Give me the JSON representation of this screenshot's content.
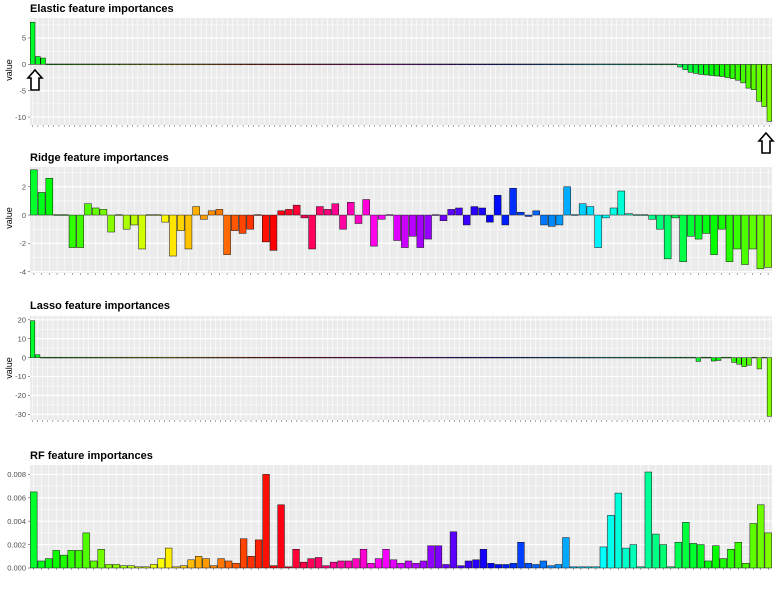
{
  "chart_data": [
    {
      "type": "bar",
      "title": "Elastic feature importances",
      "ylabel": "value",
      "ylim": [
        -11.5,
        8.8
      ],
      "yticks": [
        5,
        0,
        -5,
        -10
      ],
      "grid": true,
      "annotations": [
        "up-arrow-under-first-bar",
        "up-arrow-under-last-bar"
      ],
      "values": [
        8.0,
        1.5,
        1.2,
        0,
        0,
        0,
        0,
        0,
        0,
        0,
        0,
        0,
        0,
        0,
        0,
        0,
        0,
        0,
        0,
        0,
        0,
        0,
        0,
        0,
        0,
        0,
        0,
        0,
        0,
        0,
        0,
        0,
        0,
        0,
        0,
        0,
        0,
        0,
        0,
        0,
        0,
        0,
        0,
        0,
        0,
        0,
        0,
        0,
        0,
        0,
        0,
        0,
        0,
        0,
        0,
        0,
        0,
        0,
        0,
        0,
        0,
        0,
        0,
        0,
        0,
        0,
        0,
        0,
        0,
        0,
        0,
        0,
        0,
        0,
        0,
        0,
        0,
        0,
        0,
        0,
        0,
        0,
        0,
        0,
        0,
        0,
        0,
        0,
        0,
        0,
        0,
        0,
        0,
        0,
        0,
        0,
        0,
        0,
        0,
        0,
        0,
        0,
        0,
        0,
        0,
        0,
        0,
        0,
        0,
        0,
        0,
        0,
        0,
        0,
        0,
        0,
        0,
        0,
        0,
        0,
        0,
        0,
        0,
        -0.5,
        -1.0,
        -1.5,
        -1.7,
        -1.9,
        -2.0,
        -2.1,
        -2.2,
        -2.3,
        -2.5,
        -2.7,
        -3.0,
        -3.5,
        -4.5,
        -4.8,
        -7.0,
        -8.0,
        -10.8
      ]
    },
    {
      "type": "bar",
      "title": "Ridge feature importances",
      "ylabel": "value",
      "ylim": [
        -4.1,
        3.4
      ],
      "yticks": [
        2,
        0,
        -2,
        -4
      ],
      "grid": true,
      "values": [
        3.2,
        1.6,
        2.6,
        0,
        0,
        -2.3,
        -2.3,
        0.8,
        0.5,
        0.4,
        -1.2,
        0,
        -1.0,
        -0.7,
        -2.4,
        0,
        0,
        -0.5,
        -2.9,
        -1.1,
        -2.4,
        0.6,
        -0.3,
        0.3,
        0.4,
        -2.8,
        -1.1,
        -1.3,
        -1.0,
        0,
        -1.9,
        -2.5,
        0.3,
        0.4,
        0.7,
        -0.2,
        -2.4,
        0.6,
        0.4,
        0.8,
        -1.0,
        0.9,
        -0.6,
        1.1,
        -2.2,
        -0.3,
        0,
        -1.8,
        -2.3,
        -1.5,
        -2.3,
        -1.7,
        0,
        -0.4,
        0.4,
        0.5,
        -0.7,
        0.6,
        0.5,
        -0.5,
        1.4,
        -0.7,
        1.9,
        0.2,
        -0.1,
        0.3,
        -0.7,
        -0.8,
        -0.7,
        2.0,
        0,
        0.8,
        0.6,
        -2.3,
        -0.2,
        0.5,
        1.7,
        0.1,
        0,
        0,
        -0.3,
        -1.0,
        -3.1,
        -0.2,
        -3.3,
        -1.5,
        -1.7,
        -1.3,
        -2.8,
        -1.0,
        -3.3,
        -2.4,
        -3.5,
        -2.4,
        -3.8,
        -3.7
      ]
    },
    {
      "type": "bar",
      "title": "Lasso feature importances",
      "ylabel": "value",
      "ylim": [
        -33,
        22
      ],
      "yticks": [
        20,
        10,
        0,
        -10,
        -20,
        -30
      ],
      "grid": true,
      "values": [
        19.5,
        1.5,
        0,
        0,
        0,
        0,
        0,
        0,
        0,
        0,
        0,
        0,
        0,
        0,
        0,
        0,
        0,
        0,
        0,
        0,
        0,
        0,
        0,
        0,
        0,
        0,
        0,
        0,
        0,
        0,
        0,
        0,
        0,
        0,
        0,
        0,
        0,
        0,
        0,
        0,
        0,
        0,
        0,
        0,
        0,
        0,
        0,
        0,
        0,
        0,
        0,
        0,
        0,
        0,
        0,
        0,
        0,
        0,
        0,
        0,
        0,
        0,
        0,
        0,
        0,
        0,
        0,
        0,
        0,
        0,
        0,
        0,
        0,
        0,
        0,
        0,
        0,
        0,
        0,
        0,
        0,
        0,
        0,
        0,
        0,
        0,
        0,
        0,
        0,
        0,
        0,
        0,
        0,
        0,
        0,
        0,
        0,
        0,
        0,
        0,
        0,
        0,
        0,
        0,
        0,
        0,
        0,
        0,
        0,
        0,
        0,
        0,
        0,
        0,
        0,
        0,
        0,
        0,
        0,
        0,
        0,
        0,
        0,
        0,
        0,
        0,
        0,
        0,
        0,
        0,
        0,
        -2.0,
        0,
        0,
        -1.8,
        -1.5,
        0,
        0,
        -2.5,
        -3.5,
        -4.8,
        -4.0,
        0,
        -6.0,
        0,
        -31.0
      ]
    },
    {
      "type": "bar",
      "title": "RF feature importances",
      "ylabel": "",
      "ylim": [
        0,
        0.0088
      ],
      "yticks": [
        0.008,
        0.006,
        0.004,
        0.002,
        0.0
      ],
      "yticklabels": [
        "0.008",
        "0.006",
        "0.004",
        "0.002",
        "0.000"
      ],
      "grid": true,
      "values": [
        0.0065,
        0.0006,
        0.0008,
        0.0015,
        0.0011,
        0.0015,
        0.0015,
        0.003,
        0.0006,
        0.0016,
        0.0003,
        0.0003,
        0.0002,
        0.0002,
        0.0001,
        0.0001,
        0.0003,
        0.0008,
        0.0017,
        0.0001,
        0.0002,
        0.0007,
        0.001,
        0.0008,
        0.0002,
        0.0008,
        0.0006,
        0.0004,
        0.0025,
        0.001,
        0.0024,
        0.008,
        0.0002,
        0.0054,
        0.0001,
        0.0016,
        0.0005,
        0.0008,
        0.0009,
        0.0002,
        0.0005,
        0.0006,
        0.0006,
        0.0008,
        0.0016,
        0.0004,
        0.0008,
        0.0016,
        0.0007,
        0.0004,
        0.0006,
        0.0004,
        0.0006,
        0.0019,
        0.0019,
        0.0003,
        0.0031,
        0.0002,
        0.0006,
        0.0007,
        0.0016,
        0.0004,
        0.0003,
        0.0003,
        0.0004,
        0.0022,
        0.0004,
        0.0003,
        0.0006,
        0.0002,
        0.0003,
        0.0026,
        0.0001,
        0.0001,
        0.0001,
        0.0001,
        0.0018,
        0.0045,
        0.0064,
        0.0017,
        0.002,
        0.0001,
        0.0082,
        0.0029,
        0.002,
        0.0001,
        0.0022,
        0.0039,
        0.0021,
        0.002,
        0.0006,
        0.0019,
        0.0008,
        0.0016,
        0.0022,
        0.0004,
        0.0038,
        0.0054,
        0.003
      ]
    }
  ]
}
